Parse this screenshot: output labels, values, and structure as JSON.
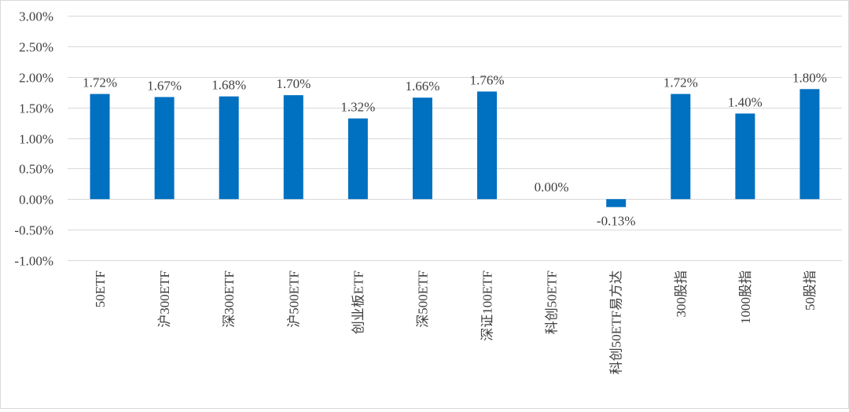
{
  "chart_data": {
    "type": "bar",
    "categories": [
      "50ETF",
      "沪300ETF",
      "深300ETF",
      "沪500ETF",
      "创业板ETF",
      "深500ETF",
      "深证100ETF",
      "科创50ETF",
      "科创50ETF易方达",
      "300股指",
      "1000股指",
      "50股指"
    ],
    "values": [
      1.72,
      1.67,
      1.68,
      1.7,
      1.32,
      1.66,
      1.76,
      0.0,
      -0.13,
      1.72,
      1.4,
      1.8
    ],
    "value_labels": [
      "1.72%",
      "1.67%",
      "1.68%",
      "1.70%",
      "1.32%",
      "1.66%",
      "1.76%",
      "0.00%",
      "-0.13%",
      "1.72%",
      "1.40%",
      "1.80%"
    ],
    "unit": "%",
    "ylim": [
      -1.0,
      3.0
    ],
    "yticks": [
      3.0,
      2.5,
      2.0,
      1.5,
      1.0,
      0.5,
      0.0,
      -0.5,
      -1.0
    ],
    "ytick_labels": [
      "3.00%",
      "2.50%",
      "2.00%",
      "1.50%",
      "1.00%",
      "0.50%",
      "0.00%",
      "-0.50%",
      "-1.00%"
    ],
    "title": "",
    "xlabel": "",
    "ylabel": "",
    "grid": true,
    "legend": "none",
    "bar_color": "#0070C0",
    "grid_color": "#d9d9d9",
    "text_color": "#404040"
  }
}
